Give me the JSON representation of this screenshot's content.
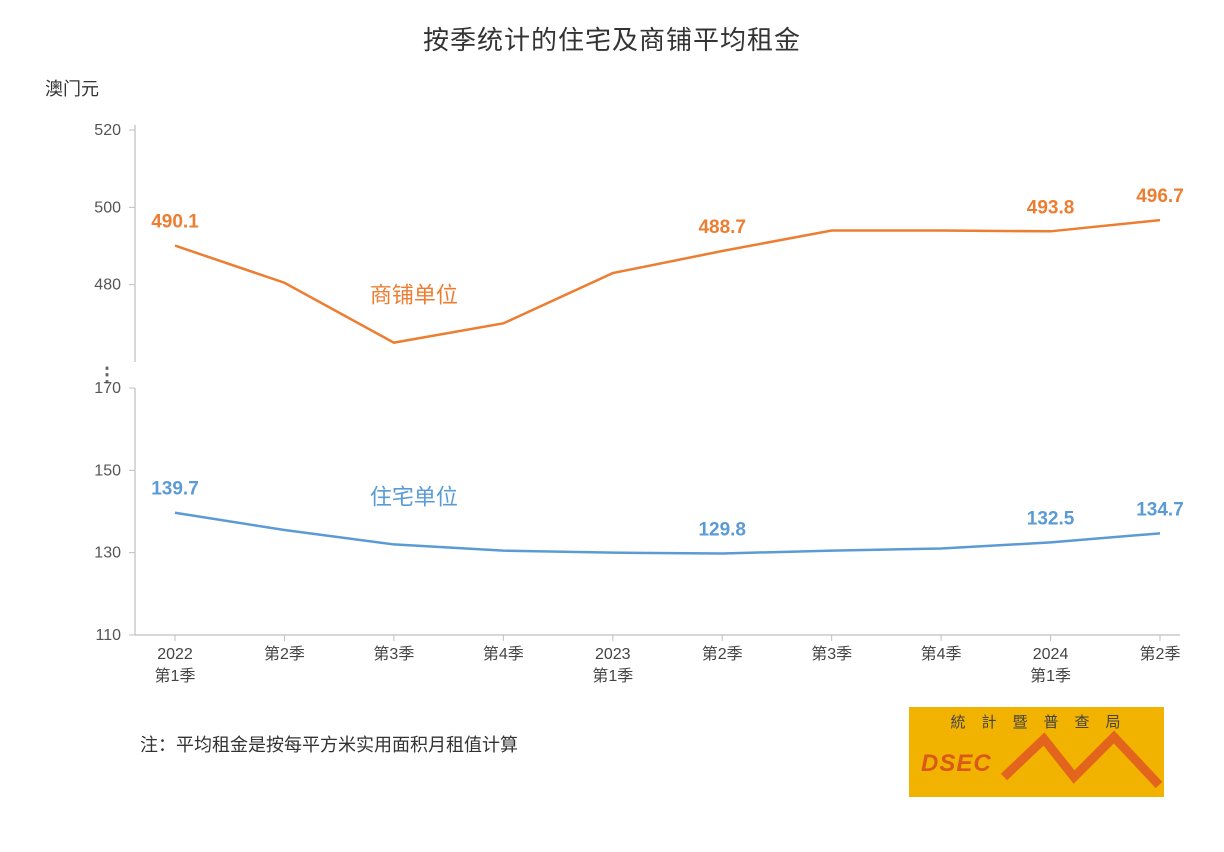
{
  "chart": {
    "type": "line-broken-axis",
    "title": "按季统计的住宅及商铺平均租金",
    "y_unit_label": "澳门元",
    "background_color": "#ffffff",
    "axis_color": "#bfbfbf",
    "tick_color": "#bfbfbf",
    "tick_font_size": 16,
    "label_font_size": 17,
    "title_font_size": 26,
    "data_label_font_size": 19,
    "x_categories": [
      "2022\n第1季",
      "第2季",
      "第3季",
      "第4季",
      "2023\n第1季",
      "第2季",
      "第3季",
      "第4季",
      "2024\n第1季",
      "第2季"
    ],
    "upper_axis": {
      "min": 460,
      "max": 520,
      "ticks": [
        480,
        500,
        520
      ]
    },
    "lower_axis": {
      "min": 110,
      "max": 170,
      "ticks": [
        110,
        130,
        150,
        170
      ]
    },
    "break_symbol": "⋮",
    "series": [
      {
        "name": "商铺单位",
        "panel": "upper",
        "color": "#ed7d31",
        "line_width": 2.5,
        "values": [
          490.1,
          480.5,
          465.0,
          470.0,
          483.0,
          488.7,
          494.0,
          494.0,
          493.8,
          496.7
        ],
        "show_label": [
          true,
          false,
          false,
          false,
          false,
          true,
          false,
          false,
          true,
          true
        ],
        "labels": [
          "490.1",
          "",
          "",
          "",
          "",
          "488.7",
          "",
          "",
          "493.8",
          "496.7"
        ],
        "series_label_pos": 2
      },
      {
        "name": "住宅单位",
        "panel": "lower",
        "color": "#5b9bd5",
        "line_width": 2.5,
        "values": [
          139.7,
          135.5,
          132.0,
          130.5,
          130.0,
          129.8,
          130.5,
          131.0,
          132.5,
          134.7
        ],
        "show_label": [
          true,
          false,
          false,
          false,
          false,
          true,
          false,
          false,
          true,
          true
        ],
        "labels": [
          "139.7",
          "",
          "",
          "",
          "",
          "129.8",
          "",
          "",
          "132.5",
          "134.7"
        ],
        "series_label_pos": 2
      }
    ]
  },
  "note": "注：平均租金是按每平方米实用面积月租值计算",
  "logo": {
    "top_text": "統計暨普查局",
    "bottom_text": "DSEC",
    "bg_color": "#f2b200",
    "line_color": "#e3651d"
  }
}
